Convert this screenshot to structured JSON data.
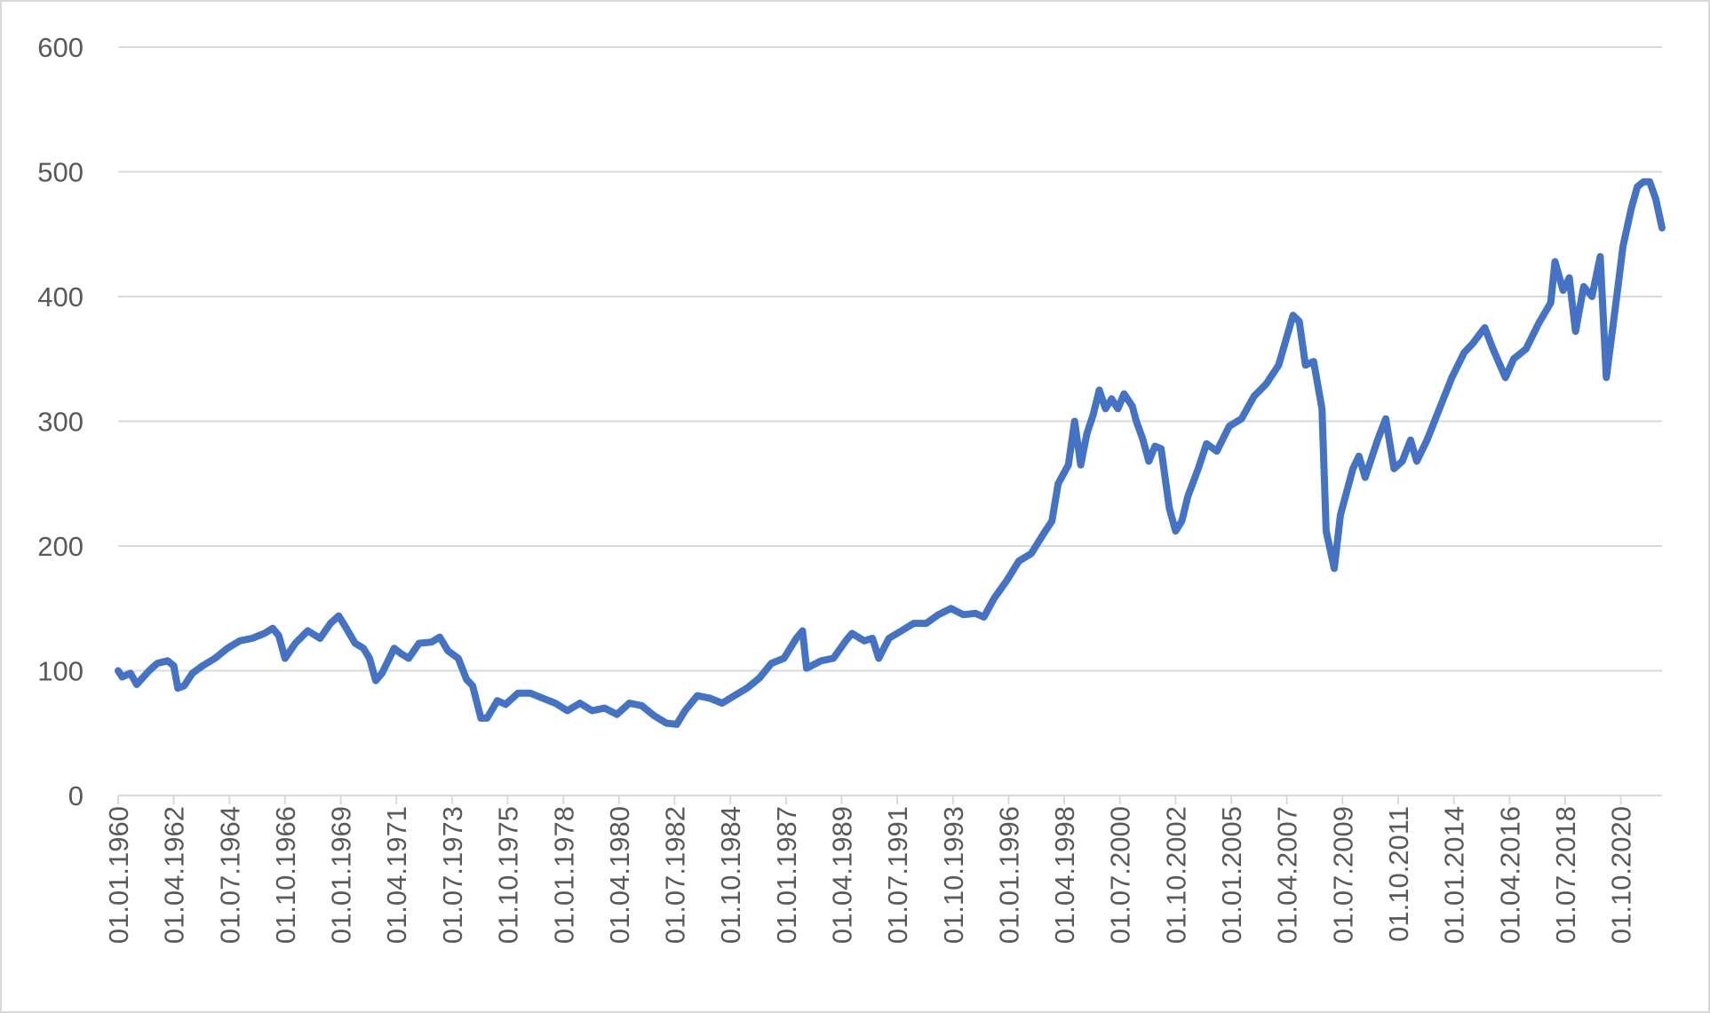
{
  "chart_data": {
    "type": "line",
    "title": "",
    "xlabel": "",
    "ylabel": "",
    "ylim": [
      0,
      600
    ],
    "y_ticks": [
      0,
      100,
      200,
      300,
      400,
      500,
      600
    ],
    "grid": "horizontal",
    "legend": "none",
    "x_tick_labels": [
      "01.01.1960",
      "01.04.1962",
      "01.07.1964",
      "01.10.1966",
      "01.01.1969",
      "01.04.1971",
      "01.07.1973",
      "01.10.1975",
      "01.01.1978",
      "01.04.1980",
      "01.07.1982",
      "01.10.1984",
      "01.01.1987",
      "01.04.1989",
      "01.07.1991",
      "01.10.1993",
      "01.01.1996",
      "01.04.1998",
      "01.07.2000",
      "01.10.2002",
      "01.01.2005",
      "01.04.2007",
      "01.07.2009",
      "01.10.2011",
      "01.01.2014",
      "01.04.2016",
      "01.07.2018",
      "01.10.2020"
    ],
    "x_range": [
      "1960-01-01",
      "2022-06-01"
    ],
    "series": [
      {
        "color": "#4472c4",
        "points": [
          [
            "1960-01-01",
            100
          ],
          [
            "1960-03-01",
            95
          ],
          [
            "1960-07-01",
            98
          ],
          [
            "1960-10-01",
            89
          ],
          [
            "1961-04-01",
            100
          ],
          [
            "1961-08-01",
            106
          ],
          [
            "1962-01-01",
            108
          ],
          [
            "1962-04-01",
            104
          ],
          [
            "1962-06-01",
            86
          ],
          [
            "1962-09-01",
            88
          ],
          [
            "1963-01-01",
            98
          ],
          [
            "1963-06-01",
            104
          ],
          [
            "1963-12-01",
            110
          ],
          [
            "1964-06-01",
            118
          ],
          [
            "1964-12-01",
            124
          ],
          [
            "1965-06-01",
            126
          ],
          [
            "1965-12-01",
            130
          ],
          [
            "1966-04-01",
            134
          ],
          [
            "1966-07-01",
            128
          ],
          [
            "1966-10-01",
            110
          ],
          [
            "1967-03-01",
            122
          ],
          [
            "1967-09-01",
            132
          ],
          [
            "1968-03-01",
            126
          ],
          [
            "1968-08-01",
            138
          ],
          [
            "1968-12-01",
            144
          ],
          [
            "1969-03-01",
            136
          ],
          [
            "1969-08-01",
            122
          ],
          [
            "1969-12-01",
            118
          ],
          [
            "1970-03-01",
            110
          ],
          [
            "1970-06-01",
            92
          ],
          [
            "1970-09-01",
            98
          ],
          [
            "1971-03-01",
            118
          ],
          [
            "1971-06-01",
            114
          ],
          [
            "1971-10-01",
            110
          ],
          [
            "1972-03-01",
            122
          ],
          [
            "1972-09-01",
            123
          ],
          [
            "1973-01-01",
            127
          ],
          [
            "1973-05-01",
            116
          ],
          [
            "1973-10-01",
            110
          ],
          [
            "1974-02-01",
            93
          ],
          [
            "1974-05-01",
            88
          ],
          [
            "1974-09-01",
            62
          ],
          [
            "1974-12-01",
            62
          ],
          [
            "1975-05-01",
            76
          ],
          [
            "1975-09-01",
            73
          ],
          [
            "1976-03-01",
            82
          ],
          [
            "1976-09-01",
            82
          ],
          [
            "1977-03-01",
            78
          ],
          [
            "1977-09-01",
            74
          ],
          [
            "1978-03-01",
            68
          ],
          [
            "1978-09-01",
            74
          ],
          [
            "1979-03-01",
            68
          ],
          [
            "1979-09-01",
            70
          ],
          [
            "1980-03-01",
            65
          ],
          [
            "1980-09-01",
            74
          ],
          [
            "1981-03-01",
            72
          ],
          [
            "1981-09-01",
            64
          ],
          [
            "1982-03-01",
            58
          ],
          [
            "1982-08-01",
            57
          ],
          [
            "1982-12-01",
            68
          ],
          [
            "1983-06-01",
            80
          ],
          [
            "1983-12-01",
            78
          ],
          [
            "1984-06-01",
            74
          ],
          [
            "1984-12-01",
            80
          ],
          [
            "1985-06-01",
            86
          ],
          [
            "1985-12-01",
            94
          ],
          [
            "1986-06-01",
            106
          ],
          [
            "1986-12-01",
            110
          ],
          [
            "1987-06-01",
            126
          ],
          [
            "1987-09-01",
            132
          ],
          [
            "1987-11-01",
            102
          ],
          [
            "1988-06-01",
            108
          ],
          [
            "1988-12-01",
            110
          ],
          [
            "1989-06-01",
            124
          ],
          [
            "1989-09-01",
            130
          ],
          [
            "1990-03-01",
            124
          ],
          [
            "1990-07-01",
            126
          ],
          [
            "1990-10-01",
            110
          ],
          [
            "1991-03-01",
            126
          ],
          [
            "1991-09-01",
            132
          ],
          [
            "1992-03-01",
            138
          ],
          [
            "1992-09-01",
            138
          ],
          [
            "1993-03-01",
            145
          ],
          [
            "1993-09-01",
            150
          ],
          [
            "1994-03-01",
            145
          ],
          [
            "1994-09-01",
            146
          ],
          [
            "1995-01-01",
            143
          ],
          [
            "1995-06-01",
            158
          ],
          [
            "1995-12-01",
            172
          ],
          [
            "1996-06-01",
            188
          ],
          [
            "1996-12-01",
            194
          ],
          [
            "1997-06-01",
            210
          ],
          [
            "1997-10-01",
            220
          ],
          [
            "1998-01-01",
            250
          ],
          [
            "1998-06-01",
            265
          ],
          [
            "1998-09-01",
            300
          ],
          [
            "1998-12-01",
            265
          ],
          [
            "1999-03-01",
            290
          ],
          [
            "1999-06-01",
            305
          ],
          [
            "1999-09-01",
            325
          ],
          [
            "1999-12-01",
            310
          ],
          [
            "2000-03-01",
            318
          ],
          [
            "2000-06-01",
            310
          ],
          [
            "2000-09-01",
            322
          ],
          [
            "2001-01-01",
            312
          ],
          [
            "2001-03-01",
            300
          ],
          [
            "2001-06-01",
            286
          ],
          [
            "2001-09-01",
            268
          ],
          [
            "2001-12-01",
            280
          ],
          [
            "2002-03-01",
            278
          ],
          [
            "2002-07-01",
            230
          ],
          [
            "2002-10-01",
            212
          ],
          [
            "2003-01-01",
            220
          ],
          [
            "2003-04-01",
            240
          ],
          [
            "2003-09-01",
            262
          ],
          [
            "2004-01-01",
            282
          ],
          [
            "2004-06-01",
            276
          ],
          [
            "2004-12-01",
            296
          ],
          [
            "2005-06-01",
            302
          ],
          [
            "2005-12-01",
            320
          ],
          [
            "2006-06-01",
            330
          ],
          [
            "2006-12-01",
            345
          ],
          [
            "2007-03-01",
            362
          ],
          [
            "2007-07-01",
            385
          ],
          [
            "2007-10-01",
            380
          ],
          [
            "2008-01-01",
            345
          ],
          [
            "2008-05-01",
            348
          ],
          [
            "2008-09-01",
            310
          ],
          [
            "2008-11-01",
            212
          ],
          [
            "2009-03-01",
            182
          ],
          [
            "2009-06-01",
            225
          ],
          [
            "2009-12-01",
            262
          ],
          [
            "2010-03-01",
            272
          ],
          [
            "2010-06-01",
            255
          ],
          [
            "2010-12-01",
            285
          ],
          [
            "2011-04-01",
            302
          ],
          [
            "2011-08-01",
            262
          ],
          [
            "2011-12-01",
            268
          ],
          [
            "2012-04-01",
            285
          ],
          [
            "2012-07-01",
            268
          ],
          [
            "2012-12-01",
            285
          ],
          [
            "2013-06-01",
            310
          ],
          [
            "2013-12-01",
            335
          ],
          [
            "2014-06-01",
            355
          ],
          [
            "2014-10-01",
            362
          ],
          [
            "2015-04-01",
            375
          ],
          [
            "2015-08-01",
            358
          ],
          [
            "2016-02-01",
            335
          ],
          [
            "2016-06-01",
            350
          ],
          [
            "2016-12-01",
            358
          ],
          [
            "2017-06-01",
            378
          ],
          [
            "2017-12-01",
            395
          ],
          [
            "2018-02-01",
            428
          ],
          [
            "2018-06-01",
            405
          ],
          [
            "2018-09-01",
            415
          ],
          [
            "2018-12-01",
            372
          ],
          [
            "2019-04-01",
            408
          ],
          [
            "2019-08-01",
            400
          ],
          [
            "2019-12-01",
            432
          ],
          [
            "2020-03-01",
            335
          ],
          [
            "2020-08-01",
            400
          ],
          [
            "2020-11-01",
            440
          ],
          [
            "2021-03-01",
            470
          ],
          [
            "2021-06-01",
            488
          ],
          [
            "2021-09-01",
            492
          ],
          [
            "2021-12-01",
            492
          ],
          [
            "2022-03-01",
            478
          ],
          [
            "2022-06-01",
            455
          ]
        ]
      }
    ]
  }
}
